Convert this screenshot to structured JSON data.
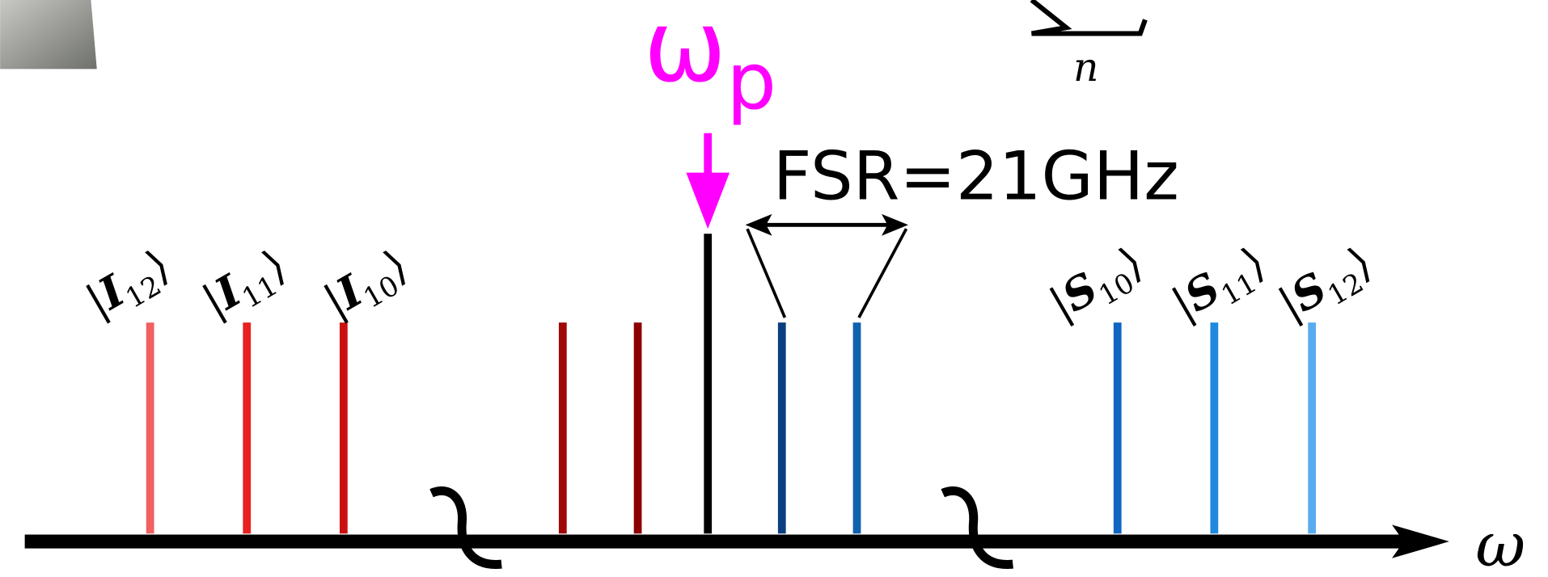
{
  "pump": {
    "symbol": "ω",
    "sub": "p"
  },
  "fsr": "FSR=21GHz",
  "axis_label": "ω",
  "sum_index": "n",
  "idlers": [
    {
      "open": "|",
      "letter": "I",
      "sub": "12",
      "close": "⟩"
    },
    {
      "open": "|",
      "letter": "I",
      "sub": "11",
      "close": "⟩"
    },
    {
      "open": "|",
      "letter": "I",
      "sub": "10",
      "close": "⟩"
    }
  ],
  "signals": [
    {
      "open": "|",
      "letter": "S",
      "sub": "10",
      "close": "⟩"
    },
    {
      "open": "|",
      "letter": "S",
      "sub": "11",
      "close": "⟩"
    },
    {
      "open": "|",
      "letter": "S",
      "sub": "12",
      "close": "⟩"
    }
  ]
}
